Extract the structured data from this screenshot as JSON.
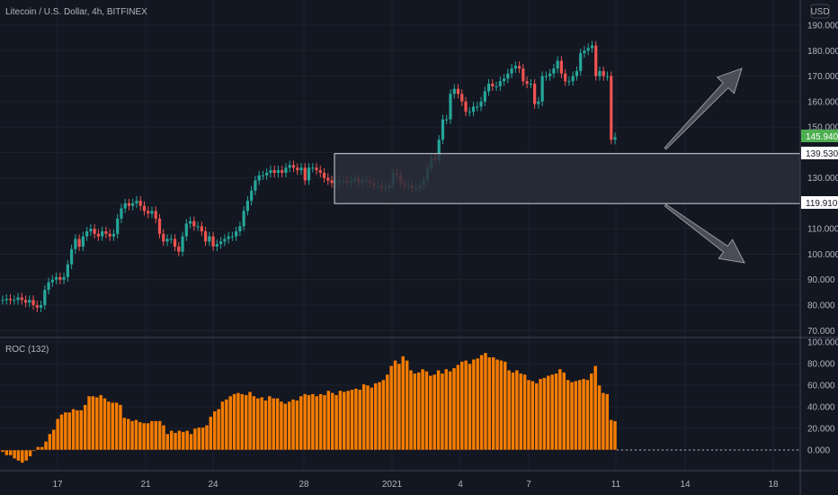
{
  "header": {
    "symbol_line": "Litecoin / U.S. Dollar, 4h, BITFINEX",
    "currency_label": "USD"
  },
  "indicator": {
    "label": "ROC (132)"
  },
  "colors": {
    "background": "#131722",
    "up": "#26a69a",
    "down": "#ef5350",
    "roc": "#f57c00",
    "grid": "#1e222d",
    "axis_text": "#b2b5be",
    "price_tag": "#4caf50",
    "box_fill": "#2a2e39",
    "arrow": "#787b86"
  },
  "chart_data": [
    {
      "type": "candlestick",
      "title": "Litecoin / U.S. Dollar, 4h, BITFINEX",
      "ylim": [
        70,
        192
      ],
      "grid": true,
      "y_ticks": [
        "190.000",
        "180.000",
        "170.000",
        "160.000",
        "150.000",
        "140.000",
        "130.000",
        "120.000",
        "110.000",
        "100.000",
        "90.000",
        "80.000",
        "70.000"
      ],
      "x_ticks": [
        "17",
        "21",
        "24",
        "28",
        "2021",
        "4",
        "7",
        "11",
        "14",
        "18"
      ],
      "close": [
        82,
        82.5,
        82,
        82,
        83,
        82,
        81,
        82,
        80,
        79,
        80,
        86,
        89,
        90,
        91,
        90,
        91,
        96,
        102,
        106,
        103,
        107,
        109,
        110,
        108,
        107,
        109,
        108,
        107,
        108,
        114,
        118,
        120,
        119,
        120,
        121,
        119,
        117,
        116,
        117,
        114,
        108,
        105,
        106,
        106,
        103,
        101,
        107,
        112,
        113,
        111,
        111,
        109,
        105,
        107,
        103,
        104,
        105,
        106,
        107,
        107,
        109,
        111,
        117,
        121,
        125,
        129,
        131,
        131,
        132,
        133,
        132,
        133,
        132,
        134,
        135,
        134,
        133,
        134,
        129,
        134,
        134,
        133,
        132,
        130,
        129,
        128,
        128,
        129,
        129,
        128,
        129,
        130,
        128,
        129,
        129,
        128,
        127,
        127,
        126,
        126,
        127,
        132,
        131,
        128,
        127,
        127,
        126,
        126,
        127,
        129,
        134,
        138,
        137,
        145,
        153,
        153,
        163,
        165,
        163,
        160,
        156,
        156,
        158,
        158,
        160,
        164,
        167,
        166,
        166,
        168,
        169,
        171,
        173,
        174,
        173,
        168,
        167,
        167,
        159,
        160,
        170,
        170,
        171,
        173,
        176,
        171,
        168,
        168,
        170,
        172,
        179,
        180,
        181,
        182,
        170,
        172,
        170,
        170,
        145,
        146
      ],
      "open": [
        82,
        82,
        82.5,
        82,
        82,
        83,
        82,
        81,
        82,
        80,
        79,
        80,
        86,
        89,
        90,
        91,
        90,
        91,
        96,
        102,
        106,
        103,
        107,
        109,
        110,
        108,
        107,
        109,
        108,
        107,
        108,
        114,
        118,
        120,
        119,
        120,
        121,
        119,
        117,
        116,
        117,
        114,
        108,
        105,
        106,
        106,
        103,
        101,
        107,
        112,
        113,
        111,
        111,
        109,
        105,
        107,
        103,
        104,
        105,
        106,
        107,
        107,
        109,
        111,
        117,
        121,
        125,
        129,
        131,
        131,
        132,
        133,
        132,
        133,
        132,
        134,
        135,
        134,
        133,
        134,
        129,
        134,
        134,
        133,
        132,
        130,
        129,
        128,
        128,
        129,
        129,
        128,
        129,
        130,
        128,
        129,
        129,
        128,
        127,
        127,
        126,
        126,
        127,
        132,
        131,
        128,
        127,
        127,
        126,
        126,
        127,
        129,
        134,
        138,
        137,
        145,
        153,
        153,
        163,
        165,
        163,
        160,
        156,
        156,
        158,
        158,
        160,
        164,
        167,
        166,
        166,
        168,
        169,
        171,
        173,
        174,
        173,
        168,
        167,
        167,
        159,
        160,
        170,
        170,
        171,
        173,
        176,
        171,
        168,
        168,
        170,
        172,
        179,
        180,
        181,
        182,
        170,
        172,
        170,
        170,
        145
      ]
    },
    {
      "type": "bar",
      "title": "ROC (132)",
      "ylim": [
        -15,
        100
      ],
      "y_ticks": [
        "100.000",
        "80.000",
        "60.000",
        "40.000",
        "20.000",
        "0.000"
      ],
      "values": [
        -2,
        -5,
        -5,
        -8,
        -10,
        -12,
        -10,
        -6,
        -1,
        3,
        3,
        8,
        15,
        19,
        29,
        33,
        35,
        35,
        38,
        37,
        37,
        42,
        50,
        50,
        49,
        51,
        48,
        45,
        44,
        44,
        42,
        30,
        29,
        27,
        28,
        26,
        25,
        25,
        27,
        27,
        27,
        23,
        15,
        18,
        16,
        18,
        17,
        18,
        15,
        20,
        21,
        21,
        23,
        31,
        36,
        38,
        45,
        47,
        50,
        52,
        53,
        52,
        51,
        54,
        50,
        48,
        49,
        46,
        50,
        48,
        48,
        45,
        43,
        45,
        47,
        46,
        50,
        52,
        51,
        52,
        50,
        52,
        51,
        55,
        53,
        51,
        55,
        54,
        55,
        56,
        57,
        56,
        61,
        60,
        58,
        62,
        63,
        65,
        70,
        78,
        83,
        80,
        87,
        83,
        74,
        71,
        72,
        75,
        73,
        69,
        70,
        74,
        71,
        75,
        73,
        76,
        79,
        82,
        83,
        80,
        84,
        85,
        88,
        90,
        86,
        86,
        84,
        83,
        82,
        74,
        72,
        74,
        71,
        70,
        65,
        64,
        62,
        66,
        67,
        69,
        70,
        71,
        75,
        72,
        65,
        63,
        64,
        65,
        66,
        65,
        71,
        78,
        60,
        53,
        52,
        28,
        27
      ]
    }
  ],
  "axis": {
    "y_ticks": [
      "190.000",
      "180.000",
      "170.000",
      "160.000",
      "150.000",
      "140.000",
      "130.000",
      "120.000",
      "110.000",
      "100.000",
      "90.000",
      "80.000",
      "70.000"
    ],
    "roc_ticks": [
      "100.000",
      "80.000",
      "60.000",
      "40.000",
      "20.000",
      "0.000"
    ],
    "x_ticks": [
      "17",
      "21",
      "24",
      "28",
      "2021",
      "4",
      "7",
      "11",
      "14",
      "18"
    ]
  },
  "price_tags": {
    "last_price": "145.940",
    "box_top": "139.530",
    "box_bottom": "119.910"
  },
  "drawings": {
    "box_top_value": 139.53,
    "box_bottom_value": 119.91
  }
}
